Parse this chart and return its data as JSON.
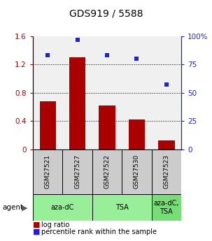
{
  "title": "GDS919 / 5588",
  "samples": [
    "GSM27521",
    "GSM27527",
    "GSM27522",
    "GSM27530",
    "GSM27523"
  ],
  "log_ratios": [
    0.68,
    1.3,
    0.62,
    0.42,
    0.13
  ],
  "percentile_ranks": [
    83,
    97,
    83,
    80,
    57
  ],
  "bar_color": "#aa0000",
  "dot_color": "#2222cc",
  "groups": [
    {
      "label": "aza-dC",
      "span": [
        0,
        2
      ],
      "color": "#99ee99"
    },
    {
      "label": "TSA",
      "span": [
        2,
        4
      ],
      "color": "#99ee99"
    },
    {
      "label": "aza-dC,\nTSA",
      "span": [
        4,
        5
      ],
      "color": "#77dd77"
    }
  ],
  "ylim_left": [
    0,
    1.6
  ],
  "ylim_right": [
    0,
    100
  ],
  "yticks_left": [
    0,
    0.4,
    0.8,
    1.2,
    1.6
  ],
  "ytick_labels_left": [
    "0",
    "0.4",
    "0.8",
    "1.2",
    "1.6"
  ],
  "yticks_right": [
    0,
    25,
    50,
    75,
    100
  ],
  "ytick_labels_right": [
    "0",
    "25",
    "50",
    "75",
    "100%"
  ],
  "agent_label": "agent",
  "legend_bar_label": "log ratio",
  "legend_dot_label": "percentile rank within the sample",
  "plot_bg": "#f0f0f0",
  "sample_box_color": "#cccccc",
  "title_fontsize": 10
}
